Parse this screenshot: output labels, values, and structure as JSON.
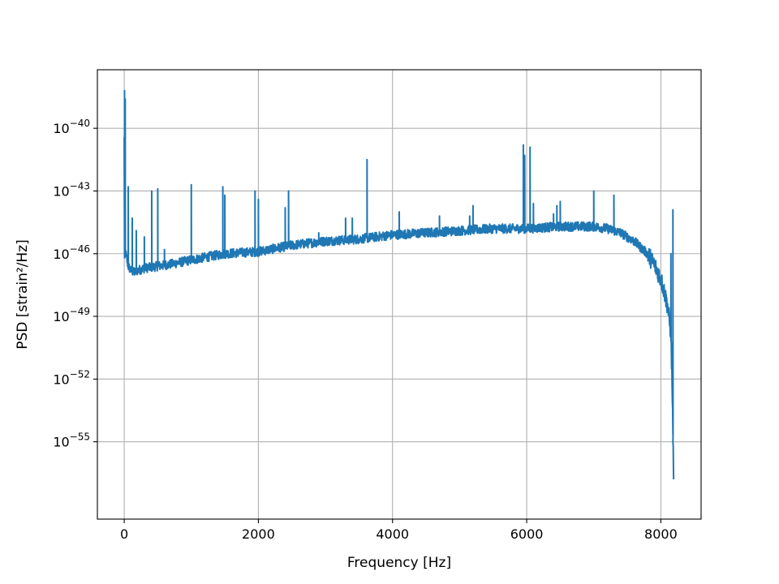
{
  "chart_data": {
    "type": "line",
    "title": "",
    "xlabel": "Frequency [Hz]",
    "ylabel": "PSD [strain²/Hz]",
    "yscale": "log",
    "grid": true,
    "xlim": [
      -400,
      8600
    ],
    "ylim_exponent": [
      -58.7,
      -37.2
    ],
    "x_ticks": [
      0,
      2000,
      4000,
      6000,
      8000
    ],
    "x_tick_labels": [
      "0",
      "2000",
      "4000",
      "6000",
      "8000"
    ],
    "y_ticks_exponent": [
      -40,
      -43,
      -46,
      -49,
      -52,
      -55
    ],
    "y_tick_labels": [
      {
        "base": "10",
        "exp": "−40"
      },
      {
        "base": "10",
        "exp": "−43"
      },
      {
        "base": "10",
        "exp": "−46"
      },
      {
        "base": "10",
        "exp": "−49"
      },
      {
        "base": "10",
        "exp": "−52"
      },
      {
        "base": "10",
        "exp": "−55"
      }
    ],
    "series": [
      {
        "color": "#1f77b4",
        "x": [
          0,
          5,
          20,
          40,
          60,
          100,
          150,
          200,
          300,
          500,
          700,
          1000,
          1500,
          2000,
          2500,
          3000,
          3500,
          4000,
          4500,
          5000,
          5500,
          6000,
          6500,
          7000,
          7200,
          7400,
          7600,
          7800,
          7900,
          8000,
          8050,
          8100,
          8150,
          8170,
          8190
        ],
        "log10_psd": [
          -40.5,
          -46.2,
          -45.9,
          -46.3,
          -46.6,
          -46.8,
          -46.9,
          -46.8,
          -46.7,
          -46.6,
          -46.5,
          -46.3,
          -46.0,
          -45.9,
          -45.6,
          -45.4,
          -45.3,
          -45.1,
          -45.0,
          -44.9,
          -44.8,
          -44.8,
          -44.7,
          -44.7,
          -44.8,
          -45.0,
          -45.4,
          -46.0,
          -46.5,
          -47.2,
          -47.8,
          -48.5,
          -49.8,
          -52.5,
          -56.8
        ],
        "spikes": [
          {
            "x": 5,
            "log10_psd": -38.2
          },
          {
            "x": 15,
            "log10_psd": -38.6
          },
          {
            "x": 60,
            "log10_psd": -42.8
          },
          {
            "x": 120,
            "log10_psd": -44.3
          },
          {
            "x": 180,
            "log10_psd": -44.9
          },
          {
            "x": 300,
            "log10_psd": -45.2
          },
          {
            "x": 410,
            "log10_psd": -43.0
          },
          {
            "x": 500,
            "log10_psd": -42.9
          },
          {
            "x": 600,
            "log10_psd": -45.8
          },
          {
            "x": 1000,
            "log10_psd": -42.7
          },
          {
            "x": 1470,
            "log10_psd": -42.8
          },
          {
            "x": 1500,
            "log10_psd": -43.2
          },
          {
            "x": 1950,
            "log10_psd": -43.0
          },
          {
            "x": 2000,
            "log10_psd": -43.4
          },
          {
            "x": 2400,
            "log10_psd": -43.8
          },
          {
            "x": 2450,
            "log10_psd": -43.0
          },
          {
            "x": 2900,
            "log10_psd": -45.0
          },
          {
            "x": 3300,
            "log10_psd": -44.3
          },
          {
            "x": 3400,
            "log10_psd": -44.3
          },
          {
            "x": 3620,
            "log10_psd": -41.5
          },
          {
            "x": 4100,
            "log10_psd": -44.0
          },
          {
            "x": 4700,
            "log10_psd": -44.2
          },
          {
            "x": 5150,
            "log10_psd": -44.2
          },
          {
            "x": 5200,
            "log10_psd": -43.7
          },
          {
            "x": 5950,
            "log10_psd": -40.8
          },
          {
            "x": 5970,
            "log10_psd": -41.3
          },
          {
            "x": 6050,
            "log10_psd": -40.9
          },
          {
            "x": 6100,
            "log10_psd": -43.6
          },
          {
            "x": 6400,
            "log10_psd": -44.1
          },
          {
            "x": 6450,
            "log10_psd": -43.7
          },
          {
            "x": 6500,
            "log10_psd": -43.5
          },
          {
            "x": 7000,
            "log10_psd": -43.0
          },
          {
            "x": 7300,
            "log10_psd": -43.2
          },
          {
            "x": 8150,
            "log10_psd": -46.0
          },
          {
            "x": 8180,
            "log10_psd": -43.9
          }
        ]
      }
    ]
  }
}
